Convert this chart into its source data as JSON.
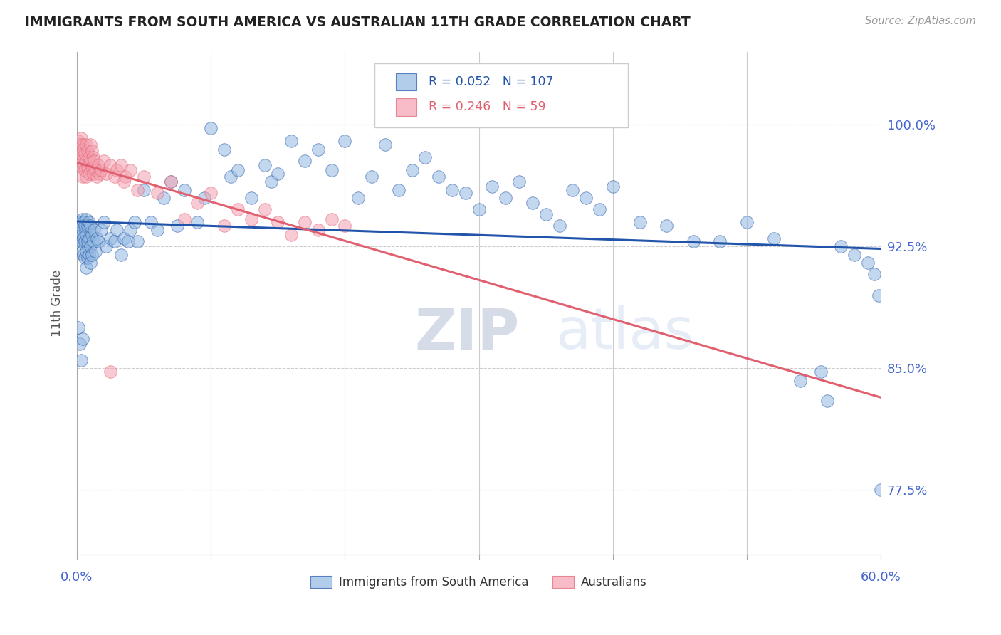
{
  "title": "IMMIGRANTS FROM SOUTH AMERICA VS AUSTRALIAN 11TH GRADE CORRELATION CHART",
  "source": "Source: ZipAtlas.com",
  "ylabel": "11th Grade",
  "y_tick_labels": [
    "77.5%",
    "85.0%",
    "92.5%",
    "100.0%"
  ],
  "y_tick_values": [
    0.775,
    0.85,
    0.925,
    1.0
  ],
  "x_min": 0.0,
  "x_max": 0.6,
  "y_min": 0.735,
  "y_max": 1.045,
  "legend1_label": "Immigrants from South America",
  "legend2_label": "Australians",
  "R_blue": 0.052,
  "N_blue": 107,
  "R_pink": 0.246,
  "N_pink": 59,
  "blue_color": "#92B8E0",
  "pink_color": "#F4A0B0",
  "blue_line_color": "#2255AA",
  "pink_line_color": "#E06070",
  "title_color": "#333333",
  "axis_label_color": "#4466CC",
  "grid_color": "#CCCCCC",
  "watermark_color": "#C8D8EE",
  "blue_x": [
    0.001,
    0.002,
    0.002,
    0.003,
    0.003,
    0.004,
    0.004,
    0.004,
    0.005,
    0.005,
    0.005,
    0.006,
    0.006,
    0.006,
    0.007,
    0.007,
    0.007,
    0.007,
    0.008,
    0.008,
    0.008,
    0.009,
    0.009,
    0.009,
    0.01,
    0.01,
    0.01,
    0.011,
    0.011,
    0.012,
    0.013,
    0.014,
    0.015,
    0.016,
    0.018,
    0.02,
    0.022,
    0.025,
    0.028,
    0.03,
    0.033,
    0.035,
    0.038,
    0.04,
    0.043,
    0.045,
    0.05,
    0.055,
    0.06,
    0.065,
    0.07,
    0.075,
    0.08,
    0.09,
    0.095,
    0.1,
    0.11,
    0.115,
    0.12,
    0.13,
    0.14,
    0.145,
    0.15,
    0.16,
    0.17,
    0.18,
    0.19,
    0.2,
    0.21,
    0.22,
    0.23,
    0.24,
    0.25,
    0.26,
    0.27,
    0.28,
    0.29,
    0.3,
    0.31,
    0.32,
    0.33,
    0.34,
    0.35,
    0.36,
    0.37,
    0.38,
    0.39,
    0.4,
    0.42,
    0.44,
    0.46,
    0.48,
    0.5,
    0.52,
    0.54,
    0.555,
    0.56,
    0.57,
    0.58,
    0.59,
    0.595,
    0.598,
    0.6,
    0.001,
    0.002,
    0.003,
    0.004
  ],
  "blue_y": [
    0.935,
    0.94,
    0.93,
    0.938,
    0.928,
    0.942,
    0.932,
    0.922,
    0.94,
    0.93,
    0.92,
    0.938,
    0.928,
    0.918,
    0.942,
    0.932,
    0.922,
    0.912,
    0.938,
    0.928,
    0.918,
    0.94,
    0.93,
    0.92,
    0.938,
    0.925,
    0.915,
    0.932,
    0.92,
    0.928,
    0.935,
    0.922,
    0.93,
    0.928,
    0.935,
    0.94,
    0.925,
    0.93,
    0.928,
    0.935,
    0.92,
    0.93,
    0.928,
    0.935,
    0.94,
    0.928,
    0.96,
    0.94,
    0.935,
    0.955,
    0.965,
    0.938,
    0.96,
    0.94,
    0.955,
    0.998,
    0.985,
    0.968,
    0.972,
    0.955,
    0.975,
    0.965,
    0.97,
    0.99,
    0.978,
    0.985,
    0.972,
    0.99,
    0.955,
    0.968,
    0.988,
    0.96,
    0.972,
    0.98,
    0.968,
    0.96,
    0.958,
    0.948,
    0.962,
    0.955,
    0.965,
    0.952,
    0.945,
    0.938,
    0.96,
    0.955,
    0.948,
    0.962,
    0.94,
    0.938,
    0.928,
    0.928,
    0.94,
    0.93,
    0.842,
    0.848,
    0.83,
    0.925,
    0.92,
    0.915,
    0.908,
    0.895,
    0.775,
    0.875,
    0.865,
    0.855,
    0.868
  ],
  "pink_x": [
    0.001,
    0.001,
    0.002,
    0.002,
    0.003,
    0.003,
    0.004,
    0.004,
    0.004,
    0.005,
    0.005,
    0.006,
    0.006,
    0.007,
    0.007,
    0.007,
    0.008,
    0.008,
    0.009,
    0.009,
    0.01,
    0.01,
    0.011,
    0.011,
    0.012,
    0.012,
    0.013,
    0.014,
    0.015,
    0.016,
    0.017,
    0.018,
    0.02,
    0.022,
    0.025,
    0.028,
    0.03,
    0.033,
    0.036,
    0.04,
    0.045,
    0.05,
    0.06,
    0.07,
    0.08,
    0.09,
    0.1,
    0.11,
    0.12,
    0.13,
    0.14,
    0.15,
    0.16,
    0.17,
    0.18,
    0.19,
    0.2,
    0.025,
    0.035
  ],
  "pink_y": [
    0.99,
    0.978,
    0.988,
    0.975,
    0.992,
    0.982,
    0.988,
    0.978,
    0.968,
    0.985,
    0.975,
    0.982,
    0.972,
    0.988,
    0.978,
    0.968,
    0.984,
    0.974,
    0.98,
    0.97,
    0.988,
    0.978,
    0.984,
    0.974,
    0.98,
    0.97,
    0.978,
    0.972,
    0.968,
    0.975,
    0.97,
    0.972,
    0.978,
    0.97,
    0.975,
    0.968,
    0.972,
    0.975,
    0.968,
    0.972,
    0.96,
    0.968,
    0.958,
    0.965,
    0.942,
    0.952,
    0.958,
    0.938,
    0.948,
    0.942,
    0.948,
    0.94,
    0.932,
    0.94,
    0.935,
    0.942,
    0.938,
    0.848,
    0.965
  ]
}
